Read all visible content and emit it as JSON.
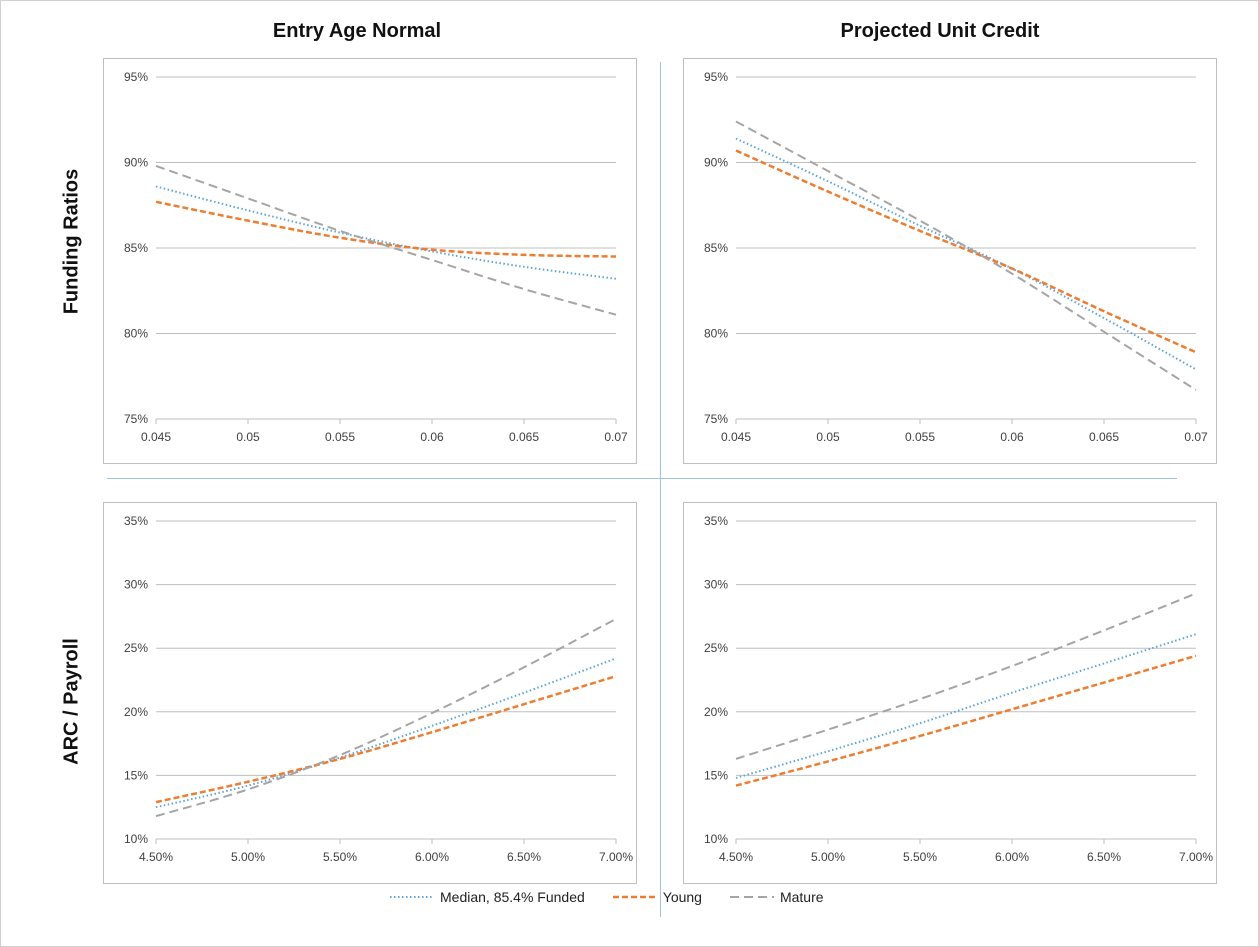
{
  "titles": {
    "col_left": "Entry Age Normal",
    "col_right": "Projected Unit Credit",
    "row_top": "Funding Ratios",
    "row_bottom": "ARC / Payroll"
  },
  "legend": [
    {
      "name": "Median, 85.4% Funded",
      "color": "#5ba3d9",
      "dash": "dotted"
    },
    {
      "name": "Young",
      "color": "#ed7d31",
      "dash": "dashed"
    },
    {
      "name": "Mature",
      "color": "#a5a5a5",
      "dash": "longdash"
    }
  ],
  "chart_data": [
    {
      "id": "ean_funding",
      "type": "line",
      "x": [
        0.045,
        0.05,
        0.055,
        0.06,
        0.065,
        0.07
      ],
      "x_tick_labels": [
        "0.045",
        "0.05",
        "0.055",
        "0.06",
        "0.065",
        "0.07"
      ],
      "y_ticks": [
        75,
        80,
        85,
        90,
        95
      ],
      "y_tick_labels": [
        "75%",
        "80%",
        "85%",
        "90%",
        "95%"
      ],
      "ylim": [
        75,
        95
      ],
      "series": [
        {
          "name": "Median, 85.4% Funded",
          "values": [
            88.6,
            87.2,
            85.9,
            84.8,
            83.9,
            83.2
          ]
        },
        {
          "name": "Young",
          "values": [
            87.7,
            86.6,
            85.6,
            84.9,
            84.6,
            84.5
          ]
        },
        {
          "name": "Mature",
          "values": [
            89.8,
            87.9,
            86.0,
            84.3,
            82.6,
            81.1
          ]
        }
      ]
    },
    {
      "id": "puc_funding",
      "type": "line",
      "x": [
        0.045,
        0.05,
        0.055,
        0.06,
        0.065,
        0.07
      ],
      "x_tick_labels": [
        "0.045",
        "0.05",
        "0.055",
        "0.06",
        "0.065",
        "0.07"
      ],
      "y_ticks": [
        75,
        80,
        85,
        90,
        95
      ],
      "y_tick_labels": [
        "75%",
        "80%",
        "85%",
        "90%",
        "95%"
      ],
      "ylim": [
        75,
        95
      ],
      "series": [
        {
          "name": "Median, 85.4% Funded",
          "values": [
            91.4,
            88.9,
            86.3,
            83.8,
            80.9,
            77.9
          ]
        },
        {
          "name": "Young",
          "values": [
            90.7,
            88.3,
            86.0,
            83.8,
            81.3,
            78.9
          ]
        },
        {
          "name": "Mature",
          "values": [
            92.4,
            89.5,
            86.6,
            83.5,
            80.1,
            76.7
          ]
        }
      ]
    },
    {
      "id": "ean_arc",
      "type": "line",
      "x": [
        4.5,
        5.0,
        5.5,
        6.0,
        6.5,
        7.0
      ],
      "x_tick_labels": [
        "4.50%",
        "5.00%",
        "5.50%",
        "6.00%",
        "6.50%",
        "7.00%"
      ],
      "y_ticks": [
        10,
        15,
        20,
        25,
        30,
        35
      ],
      "y_tick_labels": [
        "10%",
        "15%",
        "20%",
        "25%",
        "30%",
        "35%"
      ],
      "ylim": [
        10,
        35
      ],
      "series": [
        {
          "name": "Median, 85.4% Funded",
          "values": [
            12.5,
            14.2,
            16.4,
            18.9,
            21.5,
            24.2
          ]
        },
        {
          "name": "Young",
          "values": [
            12.9,
            14.5,
            16.3,
            18.4,
            20.6,
            22.8
          ]
        },
        {
          "name": "Mature",
          "values": [
            11.8,
            13.9,
            16.6,
            19.9,
            23.5,
            27.3
          ]
        }
      ]
    },
    {
      "id": "puc_arc",
      "type": "line",
      "x": [
        4.5,
        5.0,
        5.5,
        6.0,
        6.5,
        7.0
      ],
      "x_tick_labels": [
        "4.50%",
        "5.00%",
        "5.50%",
        "6.00%",
        "6.50%",
        "7.00%"
      ],
      "y_ticks": [
        10,
        15,
        20,
        25,
        30,
        35
      ],
      "y_tick_labels": [
        "10%",
        "15%",
        "20%",
        "25%",
        "30%",
        "35%"
      ],
      "ylim": [
        10,
        35
      ],
      "series": [
        {
          "name": "Median, 85.4% Funded",
          "values": [
            14.8,
            16.9,
            19.1,
            21.5,
            23.8,
            26.1
          ]
        },
        {
          "name": "Young",
          "values": [
            14.2,
            16.1,
            18.1,
            20.2,
            22.3,
            24.4
          ]
        },
        {
          "name": "Mature",
          "values": [
            16.3,
            18.6,
            21.0,
            23.6,
            26.4,
            29.3
          ]
        }
      ]
    }
  ]
}
